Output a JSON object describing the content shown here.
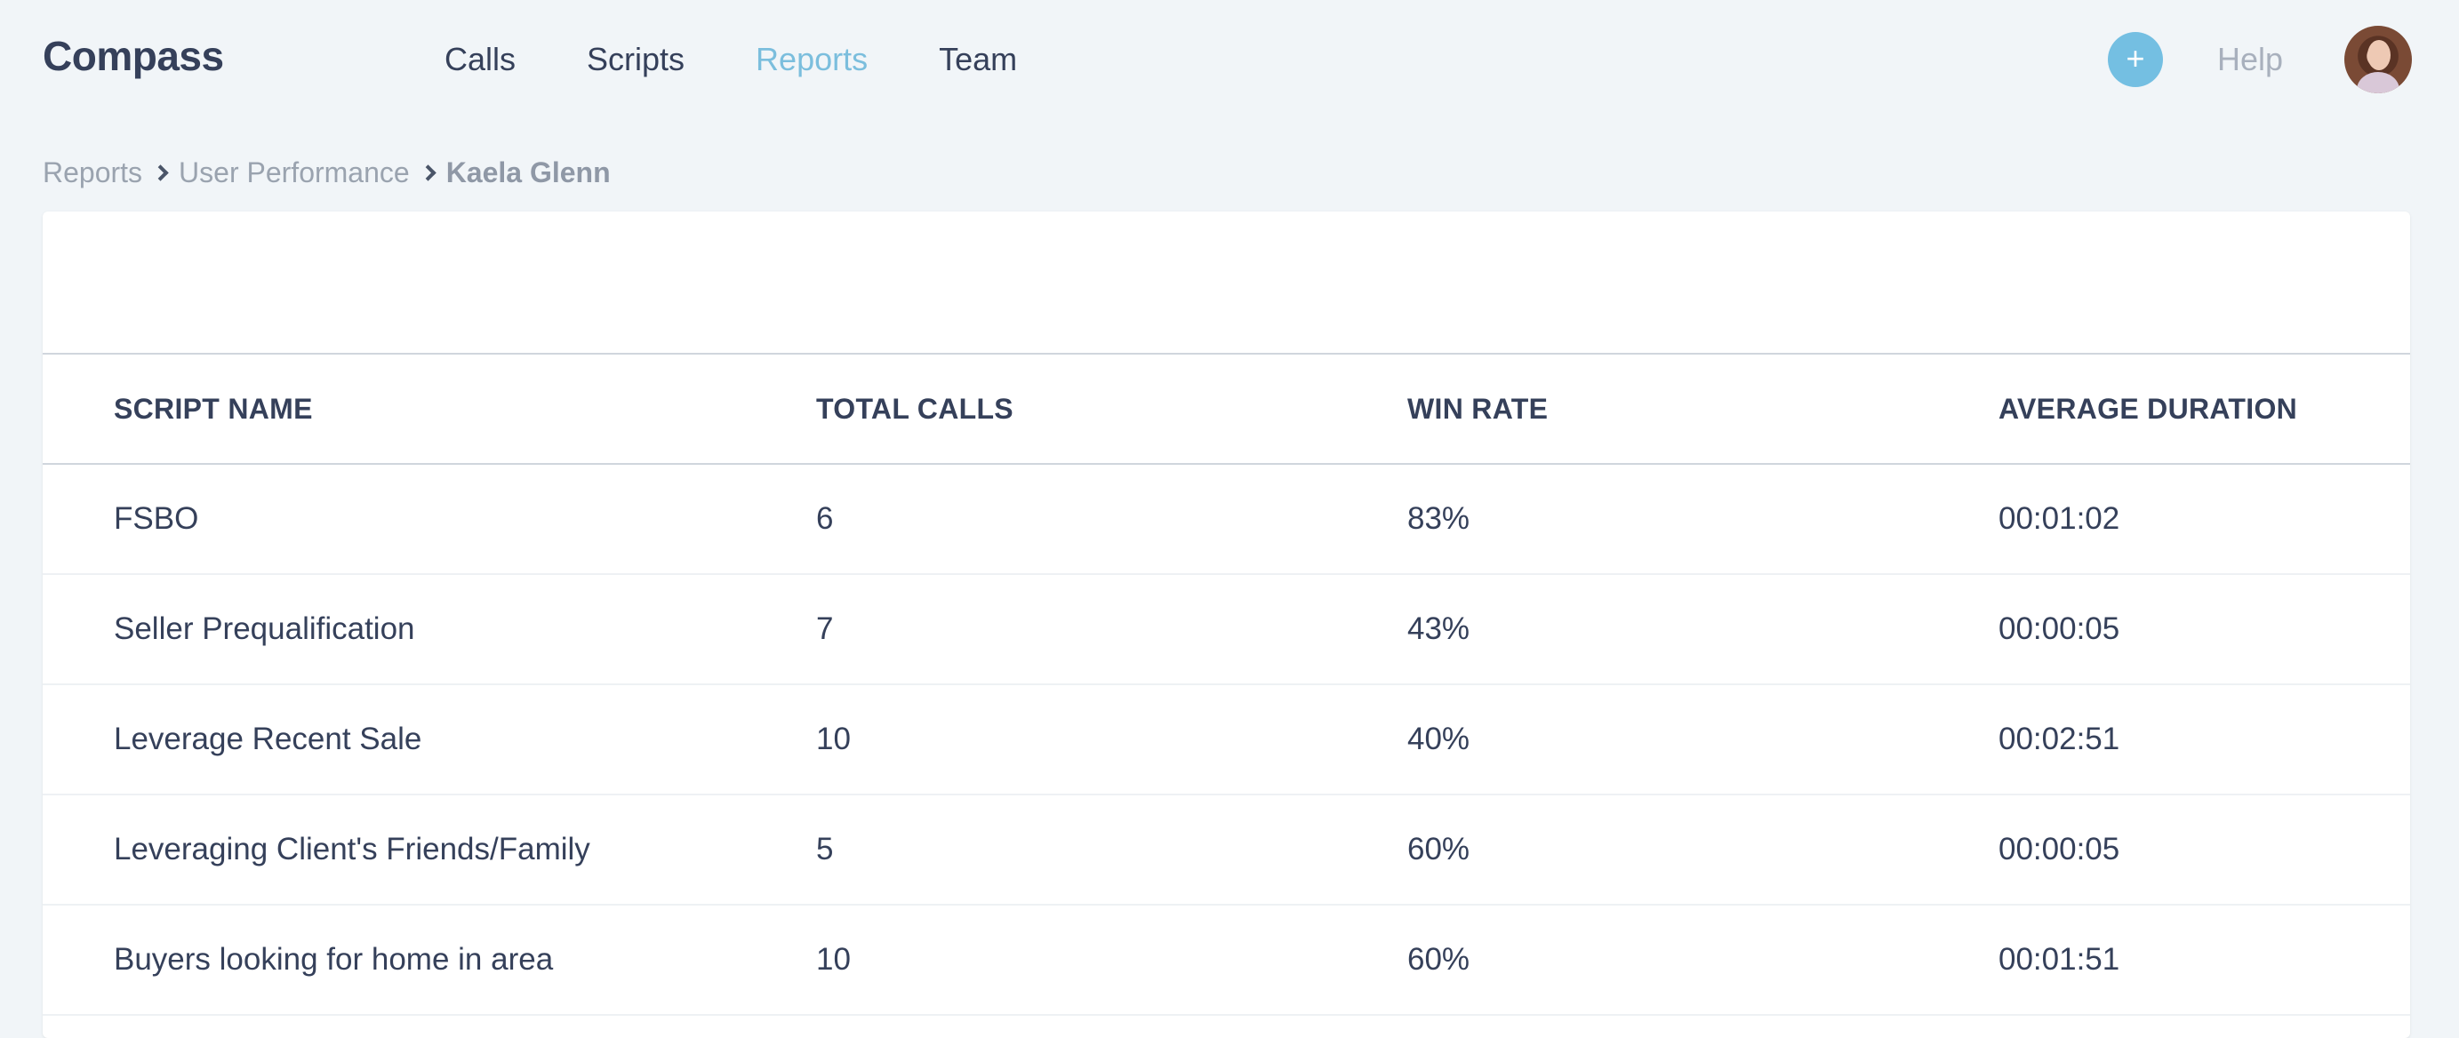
{
  "app": {
    "title": "Compass"
  },
  "nav": {
    "items": [
      {
        "label": "Calls",
        "active": false
      },
      {
        "label": "Scripts",
        "active": false
      },
      {
        "label": "Reports",
        "active": true
      },
      {
        "label": "Team",
        "active": false
      }
    ],
    "add_label": "+",
    "help_label": "Help"
  },
  "breadcrumb": {
    "items": [
      "Reports",
      "User Performance"
    ],
    "current": "Kaela Glenn"
  },
  "table": {
    "headers": [
      "SCRIPT NAME",
      "TOTAL CALLS",
      "WIN RATE",
      "AVERAGE DURATION"
    ],
    "rows": [
      {
        "name": "FSBO",
        "total_calls": "6",
        "win_rate": "83%",
        "avg_duration": "00:01:02"
      },
      {
        "name": "Seller Prequalification",
        "total_calls": "7",
        "win_rate": "43%",
        "avg_duration": "00:00:05"
      },
      {
        "name": "Leverage Recent Sale",
        "total_calls": "10",
        "win_rate": "40%",
        "avg_duration": "00:02:51"
      },
      {
        "name": "Leveraging Client's Friends/Family",
        "total_calls": "5",
        "win_rate": "60%",
        "avg_duration": "00:00:05"
      },
      {
        "name": "Buyers looking for home in area",
        "total_calls": "10",
        "win_rate": "60%",
        "avg_duration": "00:01:51"
      }
    ]
  },
  "colors": {
    "accent": "#74bfe2",
    "nav_active": "#7bbedd",
    "background": "#f1f5f8"
  }
}
